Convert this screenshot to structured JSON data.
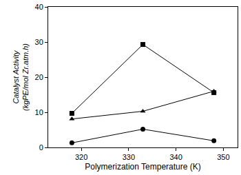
{
  "chart_data": {
    "type": "line",
    "x_label": "Polymerization Temperature (K)",
    "y_label": [
      "Catalyst Activity",
      "(kgPE/mol Zr.atm.h)"
    ],
    "x": [
      318,
      333,
      348
    ],
    "series": [
      {
        "color": "#000000",
        "marker": "square",
        "values": [
          9.7,
          29.3,
          15.6
        ]
      },
      {
        "color": "#000000",
        "marker": "triangle-up",
        "values": [
          8.1,
          10.3,
          16.0
        ]
      },
      {
        "color": "#000000",
        "marker": "circle",
        "values": [
          1.3,
          5.2,
          1.9
        ]
      }
    ],
    "xlim": [
      313,
      353
    ],
    "xticks": [
      320,
      330,
      340,
      350
    ],
    "ylim": [
      0,
      40
    ],
    "yticks": [
      0,
      10,
      20,
      30,
      40
    ],
    "grid": false
  }
}
